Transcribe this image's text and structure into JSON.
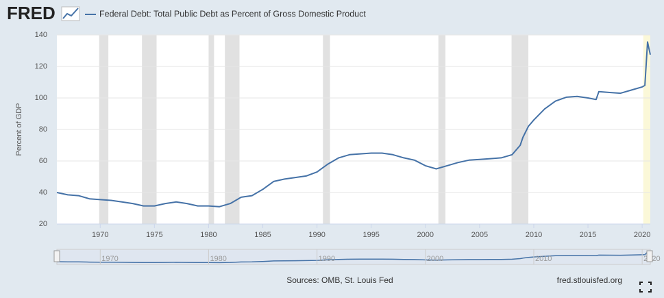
{
  "logo": "FRED",
  "chart_data": {
    "type": "line",
    "ylabel": "Percent of GDP",
    "x": [
      1966,
      1967,
      1968,
      1969,
      1970,
      1971,
      1972,
      1973,
      1974,
      1975,
      1976,
      1977,
      1978,
      1979,
      1980,
      1981,
      1982,
      1983,
      1984,
      1985,
      1986,
      1987,
      1988,
      1989,
      1990,
      1991,
      1992,
      1993,
      1994,
      1995,
      1996,
      1997,
      1998,
      1999,
      2000,
      2001,
      2002,
      2003,
      2004,
      2005,
      2006,
      2007,
      2008,
      2008.75,
      2009,
      2009.5,
      2010,
      2011,
      2012,
      2013,
      2014,
      2015,
      2015.75,
      2016,
      2017,
      2018,
      2019,
      2020,
      2020.25,
      2020.5,
      2020.75
    ],
    "series": [
      {
        "name": "Federal Debt: Total Public Debt as Percent of Gross Domestic Product",
        "color": "#4572a7",
        "values": [
          40,
          38.5,
          38,
          36,
          35.5,
          35,
          34,
          33,
          31.5,
          31.5,
          33,
          34,
          33,
          31.5,
          31.5,
          31,
          33,
          37,
          38,
          42,
          47,
          48.5,
          49.5,
          50.5,
          53,
          58,
          62,
          64,
          64.5,
          65,
          65,
          64,
          62,
          60.5,
          57,
          55,
          57,
          59,
          60.5,
          61,
          61.5,
          62,
          64,
          70,
          75,
          82,
          86,
          93,
          98,
          100.5,
          101,
          100,
          99,
          104,
          103.5,
          103,
          105,
          107,
          108,
          135.5,
          127.5
        ]
      }
    ],
    "xlim": [
      1966,
      2020.75
    ],
    "ylim": [
      20,
      140
    ],
    "xticks": [
      1970,
      1975,
      1980,
      1985,
      1990,
      1995,
      2000,
      2005,
      2010,
      2015,
      2020
    ],
    "yticks": [
      20,
      40,
      60,
      80,
      100,
      120,
      140
    ],
    "grid": true,
    "recessions": [
      [
        1969.9,
        1970.75
      ],
      [
        1973.85,
        1975.2
      ],
      [
        1980,
        1980.5
      ],
      [
        1981.5,
        1982.85
      ],
      [
        1990.55,
        1991.2
      ],
      [
        2001.2,
        2001.85
      ],
      [
        2007.95,
        2009.5
      ]
    ],
    "recession_color": "#e1e1e1",
    "highlight": [
      2020.1,
      2020.75
    ],
    "highlight_color": "#fbf8d8",
    "navigator_xticks": [
      1970,
      1980,
      1990,
      2000,
      2010,
      2020
    ]
  },
  "sources": "Sources: OMB, St. Louis Fed",
  "site": "fred.stlouisfed.org"
}
